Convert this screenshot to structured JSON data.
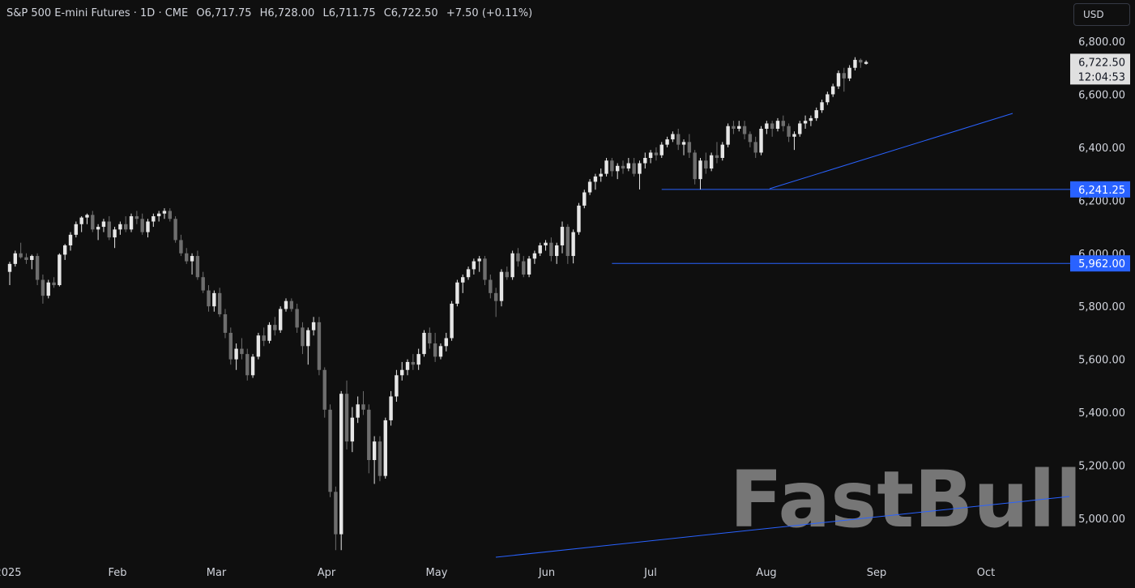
{
  "header": {
    "symbol": "S&P 500 E-mini Futures · 1D · CME",
    "open": "O6,717.75",
    "high": "H6,728.00",
    "low": "L6,711.75",
    "close": "C6,722.50",
    "change": "+7.50 (+0.11%)"
  },
  "currency": "USD",
  "watermark": "FastBull",
  "price_badge": {
    "price": "6,722.50",
    "countdown": "12:04:53"
  },
  "level_labels": [
    "6,241.25",
    "5,962.00"
  ],
  "colors": {
    "background": "#0f0f0f",
    "candle_up": "#e6e6e6",
    "candle_down": "#6e6e6e",
    "line": "#2962ff",
    "label_bg": "#2962ff",
    "text": "#d1d4dc"
  },
  "chart_data": {
    "type": "candlestick",
    "x_axis_labels": [
      "2025",
      "Feb",
      "Mar",
      "Apr",
      "May",
      "Jun",
      "Jul",
      "Aug",
      "Sep",
      "Oct"
    ],
    "y_axis_labels": [
      "6,800.00",
      "6,600.00",
      "6,400.00",
      "6,200.00",
      "6,000.00",
      "5,800.00",
      "5,600.00",
      "5,400.00",
      "5,200.00",
      "5,000.00"
    ],
    "ylim": [
      4860,
      6880
    ],
    "grid": false,
    "candles_ohlc": [
      [
        5930,
        5968,
        5880,
        5960
      ],
      [
        5960,
        6010,
        5950,
        6000
      ],
      [
        6000,
        6040,
        5980,
        5985
      ],
      [
        5985,
        6000,
        5960,
        5975
      ],
      [
        5975,
        5995,
        5940,
        5990
      ],
      [
        5990,
        6000,
        5880,
        5900
      ],
      [
        5900,
        5920,
        5810,
        5840
      ],
      [
        5840,
        5900,
        5830,
        5890
      ],
      [
        5890,
        5910,
        5870,
        5880
      ],
      [
        5880,
        6000,
        5875,
        5995
      ],
      [
        5995,
        6035,
        5975,
        6030
      ],
      [
        6030,
        6080,
        6010,
        6070
      ],
      [
        6070,
        6120,
        6060,
        6110
      ],
      [
        6110,
        6140,
        6080,
        6135
      ],
      [
        6135,
        6150,
        6110,
        6145
      ],
      [
        6145,
        6160,
        6080,
        6090
      ],
      [
        6090,
        6110,
        6050,
        6100
      ],
      [
        6100,
        6130,
        6080,
        6120
      ],
      [
        6120,
        6140,
        6050,
        6060
      ],
      [
        6060,
        6100,
        6020,
        6090
      ],
      [
        6090,
        6120,
        6070,
        6110
      ],
      [
        6110,
        6140,
        6080,
        6090
      ],
      [
        6090,
        6150,
        6080,
        6140
      ],
      [
        6140,
        6160,
        6110,
        6130
      ],
      [
        6130,
        6150,
        6070,
        6080
      ],
      [
        6080,
        6130,
        6060,
        6120
      ],
      [
        6120,
        6150,
        6100,
        6140
      ],
      [
        6140,
        6160,
        6120,
        6150
      ],
      [
        6150,
        6170,
        6130,
        6160
      ],
      [
        6160,
        6170,
        6120,
        6130
      ],
      [
        6130,
        6140,
        6040,
        6050
      ],
      [
        6050,
        6070,
        5990,
        6000
      ],
      [
        6000,
        6020,
        5960,
        5970
      ],
      [
        5970,
        6000,
        5920,
        5990
      ],
      [
        5990,
        6010,
        5900,
        5910
      ],
      [
        5910,
        5930,
        5850,
        5860
      ],
      [
        5860,
        5880,
        5780,
        5800
      ],
      [
        5800,
        5860,
        5780,
        5850
      ],
      [
        5850,
        5870,
        5760,
        5770
      ],
      [
        5770,
        5790,
        5680,
        5700
      ],
      [
        5700,
        5720,
        5580,
        5600
      ],
      [
        5600,
        5660,
        5560,
        5640
      ],
      [
        5640,
        5680,
        5600,
        5620
      ],
      [
        5620,
        5640,
        5520,
        5540
      ],
      [
        5540,
        5620,
        5530,
        5610
      ],
      [
        5610,
        5700,
        5600,
        5690
      ],
      [
        5690,
        5720,
        5650,
        5670
      ],
      [
        5670,
        5740,
        5660,
        5730
      ],
      [
        5730,
        5760,
        5690,
        5710
      ],
      [
        5710,
        5800,
        5700,
        5790
      ],
      [
        5790,
        5830,
        5780,
        5820
      ],
      [
        5820,
        5830,
        5780,
        5790
      ],
      [
        5790,
        5810,
        5700,
        5720
      ],
      [
        5720,
        5740,
        5620,
        5650
      ],
      [
        5650,
        5720,
        5580,
        5710
      ],
      [
        5710,
        5760,
        5690,
        5740
      ],
      [
        5740,
        5760,
        5540,
        5560
      ],
      [
        5560,
        5570,
        5380,
        5410
      ],
      [
        5410,
        5430,
        5080,
        5100
      ],
      [
        5100,
        5120,
        4880,
        4940
      ],
      [
        4940,
        5480,
        4880,
        5470
      ],
      [
        5470,
        5520,
        5260,
        5290
      ],
      [
        5290,
        5420,
        5250,
        5380
      ],
      [
        5380,
        5460,
        5360,
        5430
      ],
      [
        5430,
        5480,
        5390,
        5410
      ],
      [
        5410,
        5430,
        5170,
        5220
      ],
      [
        5220,
        5310,
        5130,
        5290
      ],
      [
        5290,
        5310,
        5140,
        5160
      ],
      [
        5160,
        5380,
        5150,
        5370
      ],
      [
        5370,
        5480,
        5350,
        5460
      ],
      [
        5460,
        5560,
        5440,
        5540
      ],
      [
        5540,
        5590,
        5520,
        5560
      ],
      [
        5560,
        5600,
        5540,
        5590
      ],
      [
        5590,
        5620,
        5560,
        5580
      ],
      [
        5580,
        5640,
        5560,
        5620
      ],
      [
        5620,
        5710,
        5610,
        5700
      ],
      [
        5700,
        5720,
        5640,
        5660
      ],
      [
        5660,
        5700,
        5590,
        5610
      ],
      [
        5610,
        5660,
        5600,
        5650
      ],
      [
        5650,
        5700,
        5630,
        5680
      ],
      [
        5680,
        5820,
        5670,
        5810
      ],
      [
        5810,
        5900,
        5800,
        5890
      ],
      [
        5890,
        5920,
        5850,
        5910
      ],
      [
        5910,
        5950,
        5900,
        5940
      ],
      [
        5940,
        5980,
        5920,
        5970
      ],
      [
        5970,
        5990,
        5930,
        5980
      ],
      [
        5980,
        5990,
        5880,
        5900
      ],
      [
        5900,
        5920,
        5830,
        5850
      ],
      [
        5850,
        5870,
        5760,
        5820
      ],
      [
        5820,
        5940,
        5800,
        5930
      ],
      [
        5930,
        5950,
        5900,
        5910
      ],
      [
        5910,
        6010,
        5900,
        6000
      ],
      [
        6000,
        6020,
        5950,
        5970
      ],
      [
        5970,
        5990,
        5910,
        5920
      ],
      [
        5920,
        5990,
        5910,
        5980
      ],
      [
        5980,
        6010,
        5960,
        6000
      ],
      [
        6000,
        6040,
        5990,
        6030
      ],
      [
        6030,
        6050,
        6010,
        6040
      ],
      [
        6040,
        6060,
        5970,
        5990
      ],
      [
        5990,
        6040,
        5960,
        6030
      ],
      [
        6030,
        6120,
        6000,
        6100
      ],
      [
        6100,
        6110,
        5960,
        5990
      ],
      [
        5990,
        6090,
        5962,
        6080
      ],
      [
        6080,
        6190,
        6070,
        6180
      ],
      [
        6180,
        6240,
        6170,
        6230
      ],
      [
        6230,
        6280,
        6220,
        6270
      ],
      [
        6270,
        6300,
        6240,
        6290
      ],
      [
        6290,
        6320,
        6270,
        6300
      ],
      [
        6300,
        6360,
        6290,
        6350
      ],
      [
        6350,
        6360,
        6290,
        6310
      ],
      [
        6310,
        6340,
        6280,
        6330
      ],
      [
        6330,
        6350,
        6300,
        6320
      ],
      [
        6320,
        6360,
        6310,
        6340
      ],
      [
        6340,
        6360,
        6290,
        6300
      ],
      [
        6300,
        6350,
        6241,
        6340
      ],
      [
        6340,
        6380,
        6320,
        6360
      ],
      [
        6360,
        6390,
        6340,
        6380
      ],
      [
        6380,
        6400,
        6350,
        6370
      ],
      [
        6370,
        6420,
        6360,
        6410
      ],
      [
        6410,
        6440,
        6400,
        6430
      ],
      [
        6430,
        6460,
        6420,
        6450
      ],
      [
        6450,
        6470,
        6390,
        6410
      ],
      [
        6410,
        6430,
        6370,
        6420
      ],
      [
        6420,
        6450,
        6360,
        6380
      ],
      [
        6380,
        6390,
        6260,
        6280
      ],
      [
        6280,
        6360,
        6241,
        6350
      ],
      [
        6350,
        6380,
        6300,
        6320
      ],
      [
        6320,
        6380,
        6310,
        6370
      ],
      [
        6370,
        6420,
        6340,
        6360
      ],
      [
        6360,
        6420,
        6350,
        6410
      ],
      [
        6410,
        6490,
        6400,
        6480
      ],
      [
        6480,
        6500,
        6450,
        6470
      ],
      [
        6470,
        6500,
        6460,
        6480
      ],
      [
        6480,
        6500,
        6430,
        6450
      ],
      [
        6450,
        6460,
        6400,
        6420
      ],
      [
        6420,
        6440,
        6360,
        6380
      ],
      [
        6380,
        6480,
        6370,
        6470
      ],
      [
        6470,
        6500,
        6450,
        6490
      ],
      [
        6490,
        6500,
        6440,
        6470
      ],
      [
        6470,
        6510,
        6460,
        6500
      ],
      [
        6500,
        6520,
        6460,
        6480
      ],
      [
        6480,
        6490,
        6420,
        6440
      ],
      [
        6440,
        6460,
        6390,
        6450
      ],
      [
        6450,
        6500,
        6440,
        6490
      ],
      [
        6490,
        6520,
        6470,
        6500
      ],
      [
        6500,
        6520,
        6480,
        6510
      ],
      [
        6510,
        6550,
        6500,
        6540
      ],
      [
        6540,
        6580,
        6530,
        6570
      ],
      [
        6570,
        6610,
        6560,
        6600
      ],
      [
        6600,
        6640,
        6590,
        6630
      ],
      [
        6630,
        6690,
        6620,
        6680
      ],
      [
        6680,
        6700,
        6610,
        6660
      ],
      [
        6660,
        6710,
        6650,
        6700
      ],
      [
        6700,
        6740,
        6690,
        6730
      ],
      [
        6730,
        6735,
        6700,
        6720
      ],
      [
        6715,
        6728,
        6712,
        6722
      ]
    ],
    "horizontal_levels": [
      6241.25,
      5962.0
    ]
  }
}
